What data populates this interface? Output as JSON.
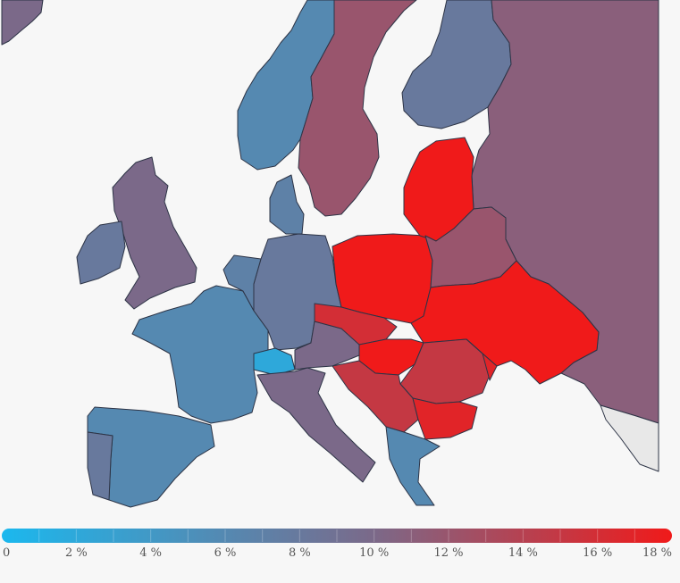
{
  "legend": {
    "min_color": "#1bb8ee",
    "mid_color": "#7a6a8a",
    "max_color": "#f01a1a",
    "ticks": [
      {
        "value": 0,
        "label": "0"
      },
      {
        "value": 2,
        "label": "2 %"
      },
      {
        "value": 4,
        "label": "4 %"
      },
      {
        "value": 6,
        "label": "6 %"
      },
      {
        "value": 8,
        "label": "8 %"
      },
      {
        "value": 10,
        "label": "10 %"
      },
      {
        "value": 12,
        "label": "12 %"
      },
      {
        "value": 14,
        "label": "14 %"
      },
      {
        "value": 16,
        "label": "16 %"
      },
      {
        "value": 18,
        "label": "18 %"
      }
    ]
  },
  "regions": [
    {
      "name": "Iceland",
      "value": 10
    },
    {
      "name": "Norway",
      "value": 6
    },
    {
      "name": "Sweden",
      "value": 12
    },
    {
      "name": "Finland",
      "value": 8
    },
    {
      "name": "Russia",
      "value": 11
    },
    {
      "name": "United Kingdom",
      "value": 10
    },
    {
      "name": "Ireland",
      "value": 8
    },
    {
      "name": "France",
      "value": 6
    },
    {
      "name": "Spain",
      "value": 6
    },
    {
      "name": "Portugal",
      "value": 8
    },
    {
      "name": "Germany",
      "value": 8
    },
    {
      "name": "Benelux",
      "value": 7
    },
    {
      "name": "Denmark",
      "value": 7
    },
    {
      "name": "Switzerland",
      "value": 2
    },
    {
      "name": "Italy",
      "value": 10
    },
    {
      "name": "Austria",
      "value": 10
    },
    {
      "name": "Poland",
      "value": 18
    },
    {
      "name": "Czechia",
      "value": 16
    },
    {
      "name": "Baltics",
      "value": 18
    },
    {
      "name": "Belarus",
      "value": 12
    },
    {
      "name": "Ukraine",
      "value": 18
    },
    {
      "name": "Hungary",
      "value": 18
    },
    {
      "name": "Romania",
      "value": 15
    },
    {
      "name": "Moldova",
      "value": 17
    },
    {
      "name": "Balkans",
      "value": 15
    },
    {
      "name": "Bulgaria",
      "value": 17
    },
    {
      "name": "Greece",
      "value": 6
    },
    {
      "name": "Turkey",
      "value": null
    }
  ]
}
